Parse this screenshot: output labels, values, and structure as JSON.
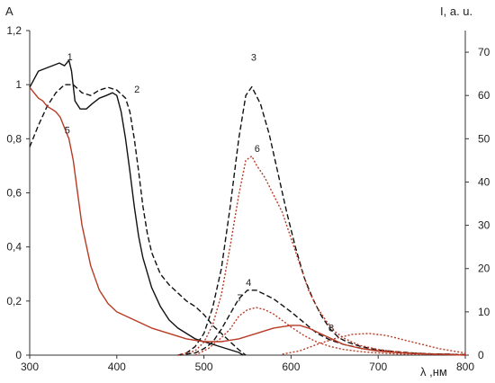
{
  "chart_data": {
    "type": "line",
    "title": "",
    "xlabel": "λ ,нм",
    "ylabel_left": "A",
    "ylabel_right": "I, a. u.",
    "xlim": [
      300,
      800
    ],
    "ylim_left": [
      0,
      1.2
    ],
    "ylim_right": [
      0,
      75
    ],
    "grid": false,
    "legend": "none",
    "x_ticks": [
      "300",
      "400",
      "500",
      "600",
      "700",
      "800"
    ],
    "y_left_ticks": [
      "0",
      "0,2",
      "0,4",
      "0,6",
      "0,8",
      "1",
      "1,2"
    ],
    "y_right_ticks": [
      "0",
      "10",
      "20",
      "30",
      "40",
      "50",
      "60",
      "70"
    ],
    "series": [
      {
        "name": "1",
        "axis": "left",
        "color": "#111111",
        "dash": "solid",
        "label_at": [
          343,
          1.09
        ],
        "x": [
          300,
          310,
          318,
          326,
          334,
          340,
          345,
          348,
          352,
          358,
          365,
          372,
          380,
          388,
          395,
          400,
          405,
          410,
          415,
          420,
          425,
          430,
          440,
          450,
          460,
          470,
          480,
          490,
          500,
          510,
          520,
          530,
          540,
          545
        ],
        "y": [
          0.99,
          1.05,
          1.06,
          1.07,
          1.08,
          1.07,
          1.09,
          1.05,
          0.94,
          0.91,
          0.91,
          0.93,
          0.95,
          0.96,
          0.97,
          0.96,
          0.9,
          0.8,
          0.68,
          0.55,
          0.44,
          0.36,
          0.25,
          0.18,
          0.13,
          0.1,
          0.08,
          0.06,
          0.05,
          0.04,
          0.03,
          0.02,
          0.01,
          0.0
        ]
      },
      {
        "name": "2",
        "axis": "left",
        "color": "#111111",
        "dash": "6,3",
        "label_at": [
          420,
          0.97
        ],
        "x": [
          300,
          310,
          320,
          330,
          340,
          350,
          360,
          370,
          380,
          390,
          400,
          410,
          415,
          420,
          425,
          430,
          435,
          440,
          450,
          460,
          470,
          480,
          490,
          500,
          510,
          520,
          530,
          540,
          548
        ],
        "y": [
          0.77,
          0.85,
          0.92,
          0.97,
          1.0,
          1.0,
          0.97,
          0.96,
          0.98,
          0.99,
          0.98,
          0.95,
          0.9,
          0.8,
          0.68,
          0.55,
          0.45,
          0.38,
          0.3,
          0.26,
          0.23,
          0.2,
          0.18,
          0.15,
          0.11,
          0.08,
          0.05,
          0.02,
          0.0
        ]
      },
      {
        "name": "3",
        "axis": "right",
        "color": "#111111",
        "dash": "6,3",
        "label_at": [
          554,
          68
        ],
        "x": [
          470,
          480,
          490,
          500,
          510,
          520,
          530,
          540,
          548,
          555,
          565,
          575,
          585,
          595,
          605,
          615,
          625,
          635,
          645,
          655,
          665,
          680,
          700,
          720,
          740,
          760,
          780,
          800
        ],
        "y": [
          0,
          0.5,
          2,
          5,
          11,
          20,
          34,
          50,
          60,
          62,
          58,
          51,
          42,
          33,
          25,
          18,
          13,
          9,
          6,
          4,
          3,
          2,
          1.2,
          0.8,
          0.5,
          0.3,
          0.2,
          0.1
        ]
      },
      {
        "name": "4",
        "axis": "right",
        "color": "#111111",
        "dash": "6,3",
        "label_at": [
          548,
          16
        ],
        "x": [
          470,
          490,
          500,
          510,
          520,
          530,
          540,
          550,
          560,
          570,
          580,
          590,
          600,
          615,
          630,
          645,
          660,
          680,
          700,
          720,
          740,
          760,
          780,
          800
        ],
        "y": [
          0,
          0.5,
          1.5,
          3,
          6,
          9.5,
          13,
          15,
          15,
          14,
          13,
          11.5,
          10,
          7.5,
          5,
          3.5,
          2.5,
          1.6,
          1.0,
          0.6,
          0.4,
          0.3,
          0.2,
          0.1
        ]
      },
      {
        "name": "5",
        "axis": "left",
        "color": "#b83a24",
        "dash": "solid",
        "label_at": [
          340,
          0.82
        ],
        "x": [
          300,
          305,
          310,
          315,
          320,
          325,
          330,
          335,
          340,
          345,
          350,
          355,
          360,
          370,
          380,
          390,
          400,
          420,
          440,
          460,
          480,
          500,
          520,
          540,
          560,
          580,
          600,
          610,
          620,
          640,
          660,
          680,
          700,
          720,
          740,
          760,
          780,
          800
        ],
        "y": [
          0.99,
          0.97,
          0.95,
          0.94,
          0.92,
          0.91,
          0.9,
          0.88,
          0.84,
          0.8,
          0.72,
          0.6,
          0.48,
          0.33,
          0.24,
          0.19,
          0.16,
          0.13,
          0.1,
          0.08,
          0.06,
          0.05,
          0.05,
          0.06,
          0.08,
          0.1,
          0.11,
          0.11,
          0.1,
          0.07,
          0.04,
          0.025,
          0.015,
          0.01,
          0.006,
          0.004,
          0.002,
          0.0
        ]
      },
      {
        "name": "6",
        "axis": "right",
        "color": "#b83a24",
        "dash": "2,2",
        "label_at": [
          558,
          47
        ],
        "x": [
          470,
          490,
          500,
          510,
          520,
          530,
          540,
          548,
          555,
          560,
          570,
          580,
          590,
          600,
          610,
          620,
          630,
          640,
          650,
          660,
          670,
          680,
          700,
          720,
          740,
          760,
          780,
          800
        ],
        "y": [
          0,
          1,
          3,
          7,
          14,
          25,
          37,
          45,
          46,
          44,
          41,
          37,
          33,
          27,
          21,
          15,
          11,
          8,
          5.5,
          4,
          3,
          2.2,
          1.3,
          0.8,
          0.5,
          0.3,
          0.2,
          0.1
        ]
      },
      {
        "name": "7",
        "axis": "right",
        "color": "#b83a24",
        "dash": "2,2",
        "label_at": [
          538,
          12.5
        ],
        "x": [
          490,
          505,
          520,
          530,
          540,
          550,
          560,
          570,
          580,
          590,
          600,
          615,
          630,
          645,
          660,
          680,
          700,
          720,
          740,
          760,
          780,
          800
        ],
        "y": [
          0,
          1.5,
          4,
          6,
          9,
          10.5,
          11,
          10.5,
          9.5,
          8,
          6.5,
          4.5,
          3,
          2,
          1.3,
          0.8,
          0.5,
          0.3,
          0.2,
          0.15,
          0.1,
          0.05
        ]
      },
      {
        "name": "8",
        "axis": "right",
        "color": "#b83a24",
        "dash": "2,2",
        "label_at": [
          643,
          5.5
        ],
        "x": [
          590,
          610,
          630,
          650,
          670,
          690,
          710,
          730,
          750,
          770,
          790,
          800
        ],
        "y": [
          0.2,
          1.0,
          2.5,
          3.8,
          4.8,
          5.0,
          4.5,
          3.5,
          2.5,
          1.5,
          0.8,
          0.5
        ]
      }
    ]
  }
}
